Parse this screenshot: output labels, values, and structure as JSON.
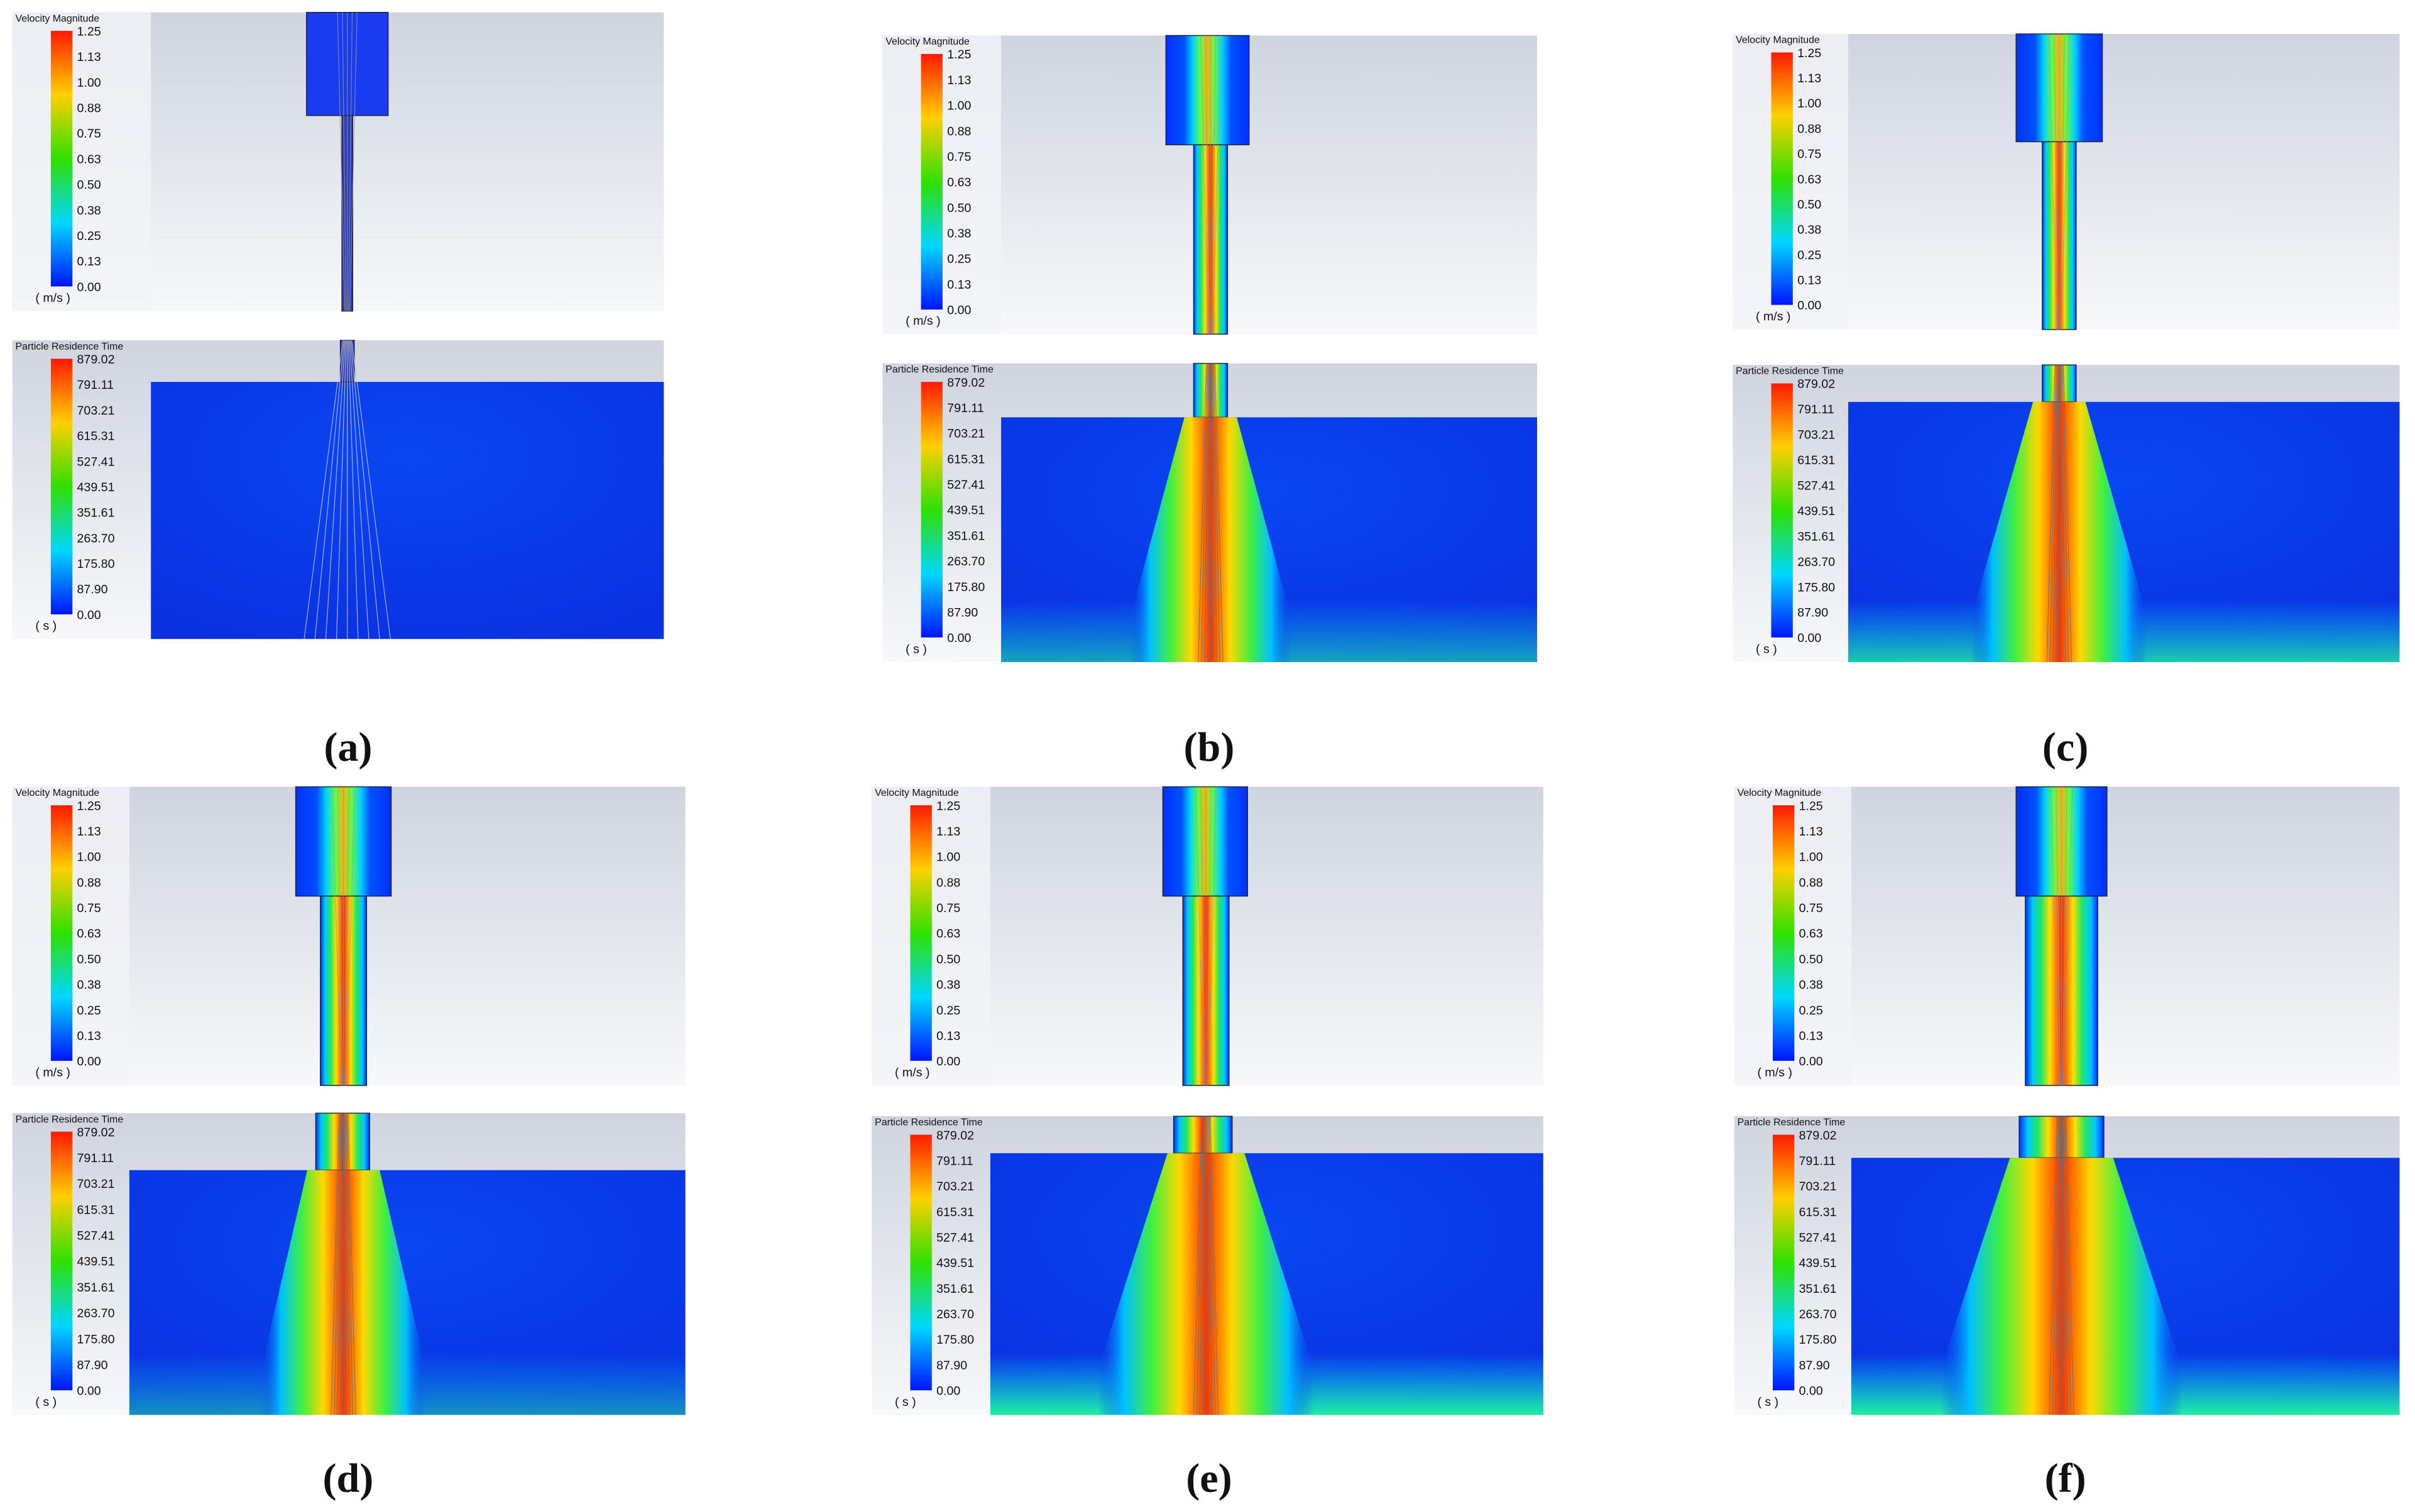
{
  "velocity_legend": {
    "title": "Velocity Magnitude",
    "ticks": [
      "1.25",
      "1.13",
      "1.00",
      "0.88",
      "0.75",
      "0.63",
      "0.50",
      "0.38",
      "0.25",
      "0.13",
      "0.00"
    ],
    "unit": "( m/s )"
  },
  "residence_legend": {
    "title": "Particle Residence Time",
    "ticks": [
      "879.02",
      "791.11",
      "703.21",
      "615.31",
      "527.41",
      "439.51",
      "351.61",
      "263.70",
      "175.80",
      "87.90",
      "0.00"
    ],
    "unit": "( s )"
  },
  "panels": [
    {
      "label": "(a)"
    },
    {
      "label": "(b)"
    },
    {
      "label": "(c)"
    },
    {
      "label": "(d)"
    },
    {
      "label": "(e)"
    },
    {
      "label": "(f)"
    }
  ]
}
